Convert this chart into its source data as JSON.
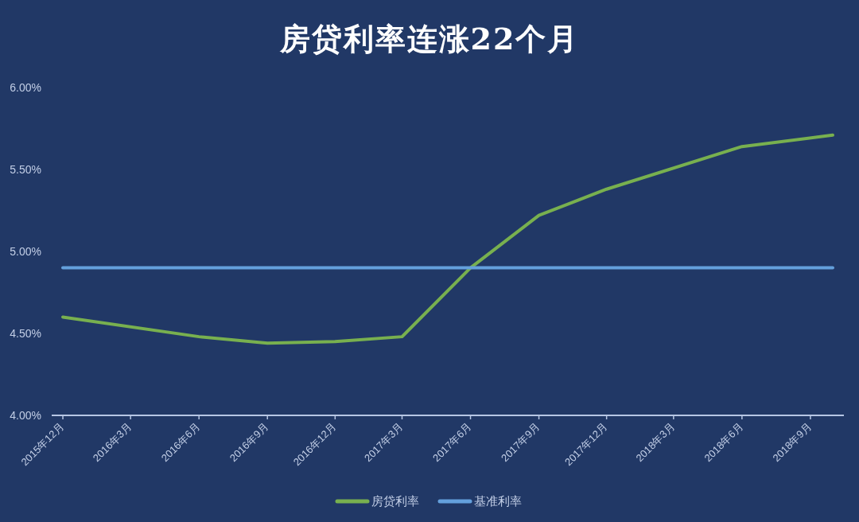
{
  "chart_data": {
    "type": "line",
    "title": "房贷利率连涨22个月",
    "series": [
      {
        "name": "房贷利率",
        "color": "#78b04f",
        "x": [
          "2015-12",
          "2016-06",
          "2016-09",
          "2016-12",
          "2017-03",
          "2017-06",
          "2017-09",
          "2017-12",
          "2018-06",
          "2018-10"
        ],
        "values": [
          4.6,
          4.48,
          4.44,
          4.45,
          4.48,
          4.9,
          5.22,
          5.38,
          5.64,
          5.71
        ]
      },
      {
        "name": "基准利率",
        "color": "#64a0dc",
        "x": [
          "2015-12",
          "2018-10"
        ],
        "values": [
          4.9,
          4.9
        ]
      }
    ],
    "xlim": [
      "2015-11-16",
      "2018-10-16"
    ],
    "xticks": [
      {
        "value": "2015-12",
        "label": "2015年12月"
      },
      {
        "value": "2016-03",
        "label": "2016年3月"
      },
      {
        "value": "2016-06",
        "label": "2016年6月"
      },
      {
        "value": "2016-09",
        "label": "2016年9月"
      },
      {
        "value": "2016-12",
        "label": "2016年12月"
      },
      {
        "value": "2017-03",
        "label": "2017年3月"
      },
      {
        "value": "2017-06",
        "label": "2017年6月"
      },
      {
        "value": "2017-09",
        "label": "2017年9月"
      },
      {
        "value": "2017-12",
        "label": "2017年12月"
      },
      {
        "value": "2018-03",
        "label": "2018年3月"
      },
      {
        "value": "2018-06",
        "label": "2018年6月"
      },
      {
        "value": "2018-09",
        "label": "2018年9月"
      }
    ],
    "ylim": [
      4,
      6
    ],
    "yticks": [
      {
        "value": 4,
        "label": "4.00%"
      },
      {
        "value": 4.5,
        "label": "4.50%"
      },
      {
        "value": 5,
        "label": "5.00%"
      },
      {
        "value": 5.5,
        "label": "5.50%"
      },
      {
        "value": 6,
        "label": "6.00%"
      }
    ],
    "legend": "bottom"
  }
}
